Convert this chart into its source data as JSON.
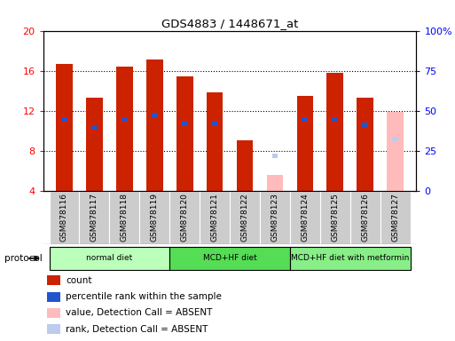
{
  "title": "GDS4883 / 1448671_at",
  "samples": [
    "GSM878116",
    "GSM878117",
    "GSM878118",
    "GSM878119",
    "GSM878120",
    "GSM878121",
    "GSM878122",
    "GSM878123",
    "GSM878124",
    "GSM878125",
    "GSM878126",
    "GSM878127"
  ],
  "count_values": [
    16.7,
    13.3,
    16.4,
    17.1,
    15.4,
    13.8,
    9.1,
    null,
    13.5,
    15.8,
    13.3,
    null
  ],
  "rank_values": [
    11.1,
    10.3,
    11.2,
    11.6,
    10.7,
    10.7,
    null,
    null,
    11.1,
    11.2,
    10.6,
    null
  ],
  "absent_count_values": [
    null,
    null,
    null,
    null,
    null,
    null,
    null,
    5.6,
    null,
    null,
    null,
    11.9
  ],
  "absent_rank_values": [
    null,
    null,
    null,
    null,
    null,
    null,
    null,
    7.5,
    null,
    null,
    null,
    9.2
  ],
  "ylim": [
    4,
    20
  ],
  "right_ylim": [
    0,
    100
  ],
  "right_yticks": [
    0,
    25,
    50,
    75,
    100
  ],
  "left_yticks": [
    4,
    8,
    12,
    16,
    20
  ],
  "bar_width": 0.55,
  "rank_bar_width": 0.2,
  "rank_bar_height": 0.4,
  "count_color": "#cc2200",
  "rank_color": "#2255cc",
  "absent_count_color": "#ffbbbb",
  "absent_rank_color": "#bbccee",
  "protocol_groups": [
    {
      "label": "normal diet",
      "start": 0,
      "end": 3,
      "color": "#bbffbb"
    },
    {
      "label": "MCD+HF diet",
      "start": 4,
      "end": 7,
      "color": "#55dd55"
    },
    {
      "label": "MCD+HF diet with metformin",
      "start": 8,
      "end": 11,
      "color": "#88ee88"
    }
  ],
  "label_bg_color": "#cccccc",
  "fig_bg_color": "#ffffff",
  "plot_bg_color": "#ffffff"
}
